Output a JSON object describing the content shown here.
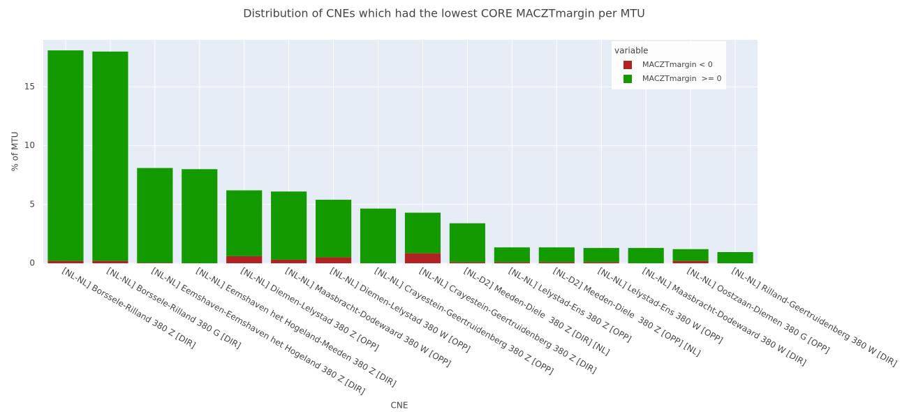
{
  "chart_data": {
    "type": "stacked_bar",
    "title": "Distribution of CNEs which had the lowest CORE MACZTmargin per MTU",
    "x_label": "CNE",
    "y_label": "% of MTU",
    "legend_title": "variable",
    "legend_position": "top-right",
    "grid": true,
    "categories": [
      "[NL-NL] Borssele-Rilland 380 Z [DIR]",
      "[NL-NL] Borssele-Rilland 380 G [DIR]",
      "[NL-NL] Eemshaven-Eemshaven het Hogeland 380 Z [DIR]",
      "[NL-NL] Eemshaven het Hogeland-Meeden 380 Z [DIR]",
      "[NL-NL] Diemen-Lelystad 380 Z [OPP]",
      "[NL-NL] Maasbracht-Dodewaard 380 W [OPP]",
      "[NL-NL] Diemen-Lelystad 380 W [OPP]",
      "[NL-NL] Crayestein-Geertruidenberg 380 Z [OPP]",
      "[NL-NL] Crayestein-Geertruidenberg 380 Z [DIR]",
      "[NL-D2] Meeden-Diele  380 Z [DIR] [NL]",
      "[NL-NL] Lelystad-Ens 380 Z [OPP]",
      "[NL-D2] Meeden-Diele  380 Z [OPP] [NL]",
      "[NL-NL] Lelystad-Ens 380 W [OPP]",
      "[NL-NL] Maasbracht-Dodewaard 380 W [DIR]",
      "[NL-NL] Oostzaan-Diemen 380 G [OPP]",
      "[NL-NL] Rilland-Geertruidenberg 380 W [DIR]"
    ],
    "series": [
      {
        "name": "MACZTmargin < 0",
        "color": "#b22222",
        "values": [
          0.2,
          0.2,
          0.05,
          0,
          0.6,
          0.3,
          0.5,
          0,
          0.85,
          0.1,
          0.1,
          0.1,
          0.1,
          0,
          0.2,
          0
        ]
      },
      {
        "name": "MACZTmargin  >= 0",
        "color": "#129a00",
        "values": [
          17.9,
          17.8,
          8.05,
          8.0,
          5.6,
          5.8,
          4.9,
          4.65,
          3.45,
          3.3,
          1.25,
          1.25,
          1.2,
          1.3,
          1.0,
          0.95
        ]
      }
    ],
    "ylim": [
      0,
      19
    ],
    "yticks": [
      0,
      5,
      10,
      15
    ]
  }
}
